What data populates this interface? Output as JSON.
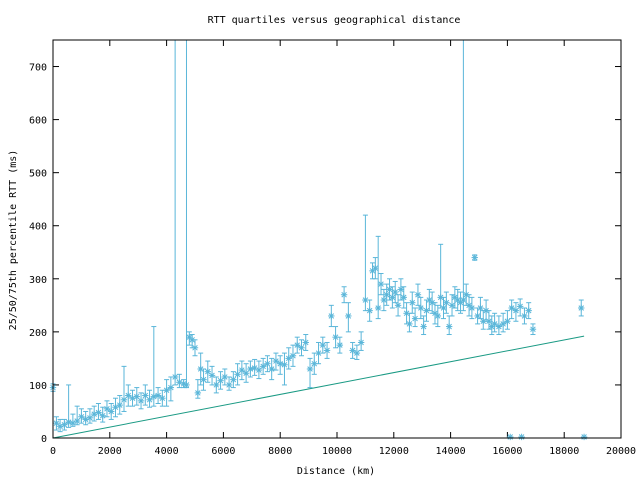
{
  "chart_data": {
    "type": "scatter",
    "title": "RTT quartiles versus geographical distance",
    "xlabel": "Distance (km)",
    "ylabel": "25/50/75th percentile RTT (ms)",
    "xlim": [
      0,
      20000
    ],
    "ylim": [
      0,
      750
    ],
    "xticks": [
      0,
      2000,
      4000,
      6000,
      8000,
      10000,
      12000,
      14000,
      16000,
      18000,
      20000
    ],
    "yticks": [
      0,
      100,
      200,
      300,
      400,
      500,
      600,
      700
    ],
    "grid": false,
    "legend": "none",
    "colors": {
      "points": "#5ab6d9",
      "line": "#1a9a84"
    },
    "series": [
      {
        "kind": "points-with-errorbars",
        "points": [
          [
            0,
            95,
            88,
            102
          ],
          [
            120,
            28,
            15,
            40
          ],
          [
            250,
            22,
            12,
            35
          ],
          [
            400,
            25,
            15,
            35
          ],
          [
            550,
            30,
            20,
            100
          ],
          [
            700,
            28,
            22,
            45
          ],
          [
            850,
            32,
            25,
            60
          ],
          [
            1000,
            40,
            28,
            55
          ],
          [
            1150,
            35,
            25,
            50
          ],
          [
            1300,
            38,
            28,
            55
          ],
          [
            1450,
            45,
            32,
            60
          ],
          [
            1600,
            48,
            35,
            65
          ],
          [
            1750,
            42,
            30,
            58
          ],
          [
            1900,
            55,
            40,
            70
          ],
          [
            2050,
            50,
            35,
            65
          ],
          [
            2200,
            58,
            40,
            75
          ],
          [
            2350,
            62,
            45,
            80
          ],
          [
            2500,
            72,
            50,
            135
          ],
          [
            2650,
            80,
            60,
            100
          ],
          [
            2800,
            75,
            60,
            90
          ],
          [
            2950,
            78,
            62,
            95
          ],
          [
            3100,
            70,
            55,
            85
          ],
          [
            3250,
            80,
            62,
            100
          ],
          [
            3400,
            72,
            58,
            90
          ],
          [
            3550,
            78,
            60,
            210
          ],
          [
            3700,
            80,
            65,
            95
          ],
          [
            3850,
            75,
            60,
            90
          ],
          [
            4000,
            90,
            60,
            110
          ],
          [
            4150,
            95,
            70,
            115
          ],
          [
            4300,
            115,
            100,
            750
          ],
          [
            4450,
            105,
            95,
            120
          ],
          [
            4600,
            102,
            95,
            110
          ],
          [
            4700,
            100,
            95,
            750
          ],
          [
            4800,
            190,
            175,
            200
          ],
          [
            4900,
            185,
            170,
            195
          ],
          [
            5000,
            170,
            155,
            185
          ],
          [
            5100,
            85,
            75,
            110
          ],
          [
            5200,
            130,
            100,
            160
          ],
          [
            5300,
            110,
            90,
            130
          ],
          [
            5450,
            125,
            105,
            145
          ],
          [
            5600,
            118,
            100,
            135
          ],
          [
            5750,
            100,
            85,
            115
          ],
          [
            5900,
            108,
            92,
            125
          ],
          [
            6050,
            115,
            100,
            130
          ],
          [
            6200,
            100,
            90,
            115
          ],
          [
            6350,
            110,
            95,
            125
          ],
          [
            6500,
            120,
            100,
            140
          ],
          [
            6650,
            128,
            110,
            145
          ],
          [
            6800,
            122,
            105,
            140
          ],
          [
            6950,
            130,
            115,
            145
          ],
          [
            7100,
            132,
            118,
            148
          ],
          [
            7250,
            128,
            112,
            145
          ],
          [
            7400,
            135,
            120,
            150
          ],
          [
            7550,
            140,
            125,
            155
          ],
          [
            7700,
            130,
            110,
            150
          ],
          [
            7850,
            145,
            128,
            160
          ],
          [
            8000,
            140,
            120,
            155
          ],
          [
            8150,
            138,
            100,
            160
          ],
          [
            8300,
            150,
            130,
            170
          ],
          [
            8450,
            155,
            135,
            175
          ],
          [
            8600,
            175,
            160,
            190
          ],
          [
            8750,
            170,
            155,
            185
          ],
          [
            8900,
            180,
            165,
            195
          ],
          [
            9050,
            130,
            95,
            150
          ],
          [
            9200,
            140,
            120,
            160
          ],
          [
            9350,
            160,
            140,
            180
          ],
          [
            9500,
            175,
            160,
            190
          ],
          [
            9650,
            165,
            150,
            180
          ],
          [
            9800,
            230,
            210,
            250
          ],
          [
            9950,
            190,
            170,
            210
          ],
          [
            10100,
            175,
            160,
            190
          ],
          [
            10250,
            270,
            255,
            285
          ],
          [
            10400,
            230,
            200,
            255
          ],
          [
            10550,
            165,
            150,
            180
          ],
          [
            10700,
            160,
            148,
            175
          ],
          [
            10850,
            180,
            165,
            200
          ],
          [
            11000,
            260,
            240,
            420
          ],
          [
            11150,
            240,
            220,
            260
          ],
          [
            11250,
            315,
            300,
            330
          ],
          [
            11350,
            320,
            300,
            340
          ],
          [
            11450,
            245,
            225,
            380
          ],
          [
            11550,
            290,
            270,
            310
          ],
          [
            11650,
            260,
            240,
            280
          ],
          [
            11750,
            270,
            250,
            290
          ],
          [
            11850,
            280,
            260,
            300
          ],
          [
            11950,
            265,
            245,
            285
          ],
          [
            12050,
            275,
            255,
            295
          ],
          [
            12150,
            250,
            230,
            270
          ],
          [
            12250,
            280,
            260,
            300
          ],
          [
            12350,
            265,
            245,
            285
          ],
          [
            12450,
            235,
            215,
            255
          ],
          [
            12550,
            215,
            200,
            235
          ],
          [
            12650,
            255,
            235,
            275
          ],
          [
            12750,
            225,
            210,
            245
          ],
          [
            12850,
            270,
            250,
            290
          ],
          [
            12950,
            245,
            225,
            265
          ],
          [
            13050,
            210,
            195,
            230
          ],
          [
            13150,
            240,
            220,
            260
          ],
          [
            13250,
            260,
            240,
            280
          ],
          [
            13350,
            255,
            235,
            275
          ],
          [
            13450,
            235,
            215,
            255
          ],
          [
            13550,
            230,
            210,
            250
          ],
          [
            13650,
            265,
            245,
            365
          ],
          [
            13750,
            245,
            225,
            265
          ],
          [
            13850,
            255,
            235,
            275
          ],
          [
            13950,
            210,
            195,
            230
          ],
          [
            14050,
            250,
            230,
            270
          ],
          [
            14150,
            265,
            245,
            285
          ],
          [
            14250,
            260,
            240,
            280
          ],
          [
            14350,
            255,
            235,
            275
          ],
          [
            14450,
            260,
            240,
            750
          ],
          [
            14550,
            270,
            250,
            290
          ],
          [
            14650,
            250,
            230,
            270
          ],
          [
            14750,
            245,
            225,
            265
          ],
          [
            14850,
            340,
            335,
            345
          ],
          [
            14950,
            230,
            215,
            245
          ],
          [
            15050,
            245,
            225,
            265
          ],
          [
            15150,
            220,
            205,
            240
          ],
          [
            15250,
            240,
            220,
            260
          ],
          [
            15350,
            220,
            205,
            240
          ],
          [
            15450,
            210,
            195,
            230
          ],
          [
            15550,
            215,
            200,
            235
          ],
          [
            15700,
            210,
            195,
            230
          ],
          [
            15850,
            215,
            200,
            235
          ],
          [
            16000,
            220,
            205,
            240
          ],
          [
            16150,
            245,
            225,
            260
          ],
          [
            16300,
            240,
            220,
            255
          ],
          [
            16450,
            248,
            230,
            262
          ],
          [
            16600,
            230,
            215,
            245
          ],
          [
            16750,
            240,
            225,
            255
          ],
          [
            16900,
            205,
            195,
            215
          ],
          [
            18600,
            245,
            230,
            260
          ]
        ]
      },
      {
        "kind": "outliers",
        "points": [
          [
            16100,
            2
          ],
          [
            16500,
            2
          ],
          [
            18700,
            2
          ]
        ]
      },
      {
        "kind": "line",
        "points": [
          [
            0,
            0
          ],
          [
            18700,
            192
          ]
        ]
      }
    ]
  }
}
